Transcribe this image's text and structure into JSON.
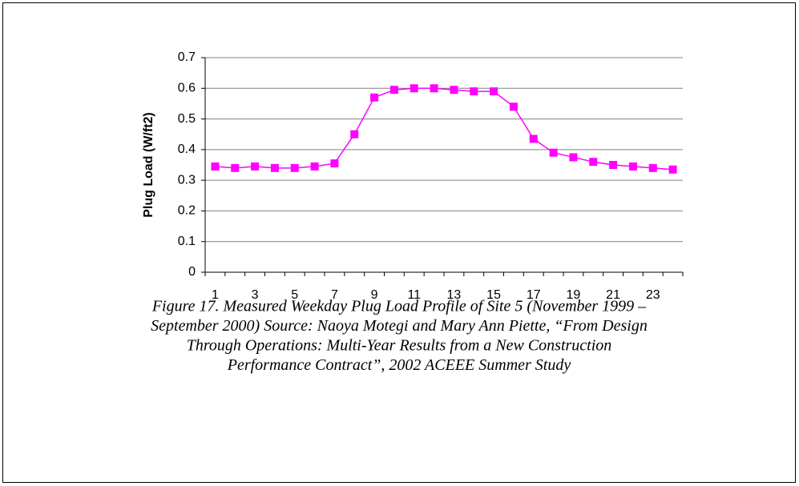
{
  "chart_data": {
    "type": "line",
    "ylabel": "Plug Load (W/ft2)",
    "categories": [
      1,
      null,
      3,
      null,
      5,
      null,
      7,
      null,
      9,
      null,
      11,
      null,
      13,
      null,
      15,
      null,
      17,
      null,
      19,
      null,
      21,
      null,
      23,
      null
    ],
    "series": [
      {
        "name": "Plug Load",
        "color": "#ff00ff",
        "values": [
          0.345,
          0.34,
          0.345,
          0.34,
          0.34,
          0.345,
          0.355,
          0.45,
          0.57,
          0.595,
          0.6,
          0.6,
          0.595,
          0.59,
          0.59,
          0.54,
          0.435,
          0.39,
          0.375,
          0.36,
          0.35,
          0.345,
          0.34,
          0.335
        ]
      }
    ],
    "ylim": [
      0,
      0.7
    ],
    "yticks": [
      0,
      0.1,
      0.2,
      0.3,
      0.4,
      0.5,
      0.6,
      0.7
    ],
    "grid": true,
    "caption": [
      "Figure 17. Measured Weekday Plug Load Profile of Site 5 (November 1999 –",
      "September 2000) Source: Naoya Motegi and Mary Ann Piette, “From Design",
      "Through Operations: Multi-Year Results from a New Construction",
      "Performance Contract”, 2002 ACEEE Summer Study"
    ]
  }
}
